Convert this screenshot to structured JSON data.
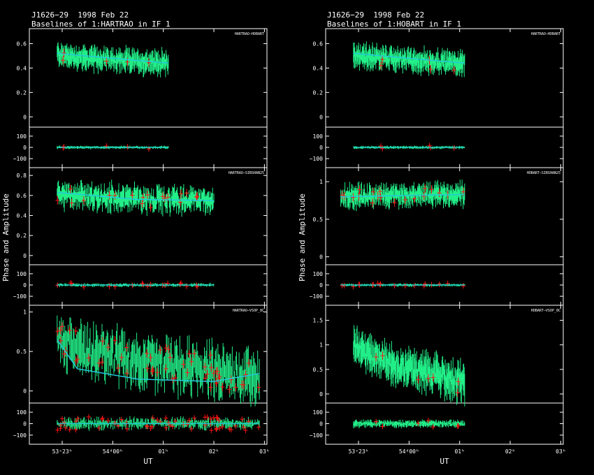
{
  "panels": [
    {
      "title_line1": "J1626−29  1998 Feb 22",
      "title_line2": "Baselines of 1:HARTRAO in IF 1",
      "ylabel": "Phase and Amplitude",
      "xlabel": "UT",
      "x_ticks": [
        {
          "label": "53ˢ23ʰ",
          "value": 0.0
        },
        {
          "label": "54ᵈ00ʰ",
          "value": 1.0
        },
        {
          "label": "01ʰ",
          "value": 2.0
        },
        {
          "label": "02ʰ",
          "value": 3.0
        },
        {
          "label": "03ʰ",
          "value": 4.0
        }
      ],
      "baselines": [
        {
          "name": "HARTRAO−HOBART",
          "amp_ticks": [
            "0.6",
            "0.4",
            "0.2",
            "0"
          ],
          "amp_range": [
            -0.05,
            0.7
          ],
          "phase_ticks": [
            "100",
            "0",
            "−100"
          ],
          "phase_range": [
            -180,
            180
          ],
          "data_x": [
            -0.1,
            2.1
          ],
          "amp_start": 0.52,
          "amp_end": 0.44,
          "amp_spread": 0.09,
          "phase_spread": 10,
          "red_density": 0.02,
          "fit": [
            [
              -0.1,
              0.52
            ],
            [
              2.1,
              0.44
            ]
          ]
        },
        {
          "name": "HARTRAO−SIBSHAN25",
          "amp_ticks": [
            "0.8",
            "0.6",
            "0.4",
            "0.2",
            "0"
          ],
          "amp_range": [
            -0.05,
            0.85
          ],
          "phase_ticks": [
            "100",
            "0",
            "−100"
          ],
          "phase_range": [
            -180,
            180
          ],
          "data_x": [
            -0.1,
            3.0
          ],
          "amp_start": 0.62,
          "amp_end": 0.55,
          "amp_spread": 0.12,
          "phase_spread": 12,
          "red_density": 0.08,
          "fit": [
            [
              -0.1,
              0.63
            ],
            [
              1.5,
              0.56
            ],
            [
              3.0,
              0.55
            ]
          ]
        },
        {
          "name": "HARTRAO−VSOP_8C",
          "amp_ticks": [
            "1",
            "0.5",
            "0"
          ],
          "amp_range": [
            -0.1,
            1.05
          ],
          "phase_ticks": [
            "100",
            "0",
            "−100"
          ],
          "phase_range": [
            -180,
            180
          ],
          "data_x": [
            -0.1,
            3.9
          ],
          "amp_start": 0.7,
          "amp_end": 0.18,
          "amp_spread": 0.3,
          "phase_spread": 40,
          "red_density": 0.25,
          "fit": [
            [
              -0.1,
              0.65
            ],
            [
              0.3,
              0.28
            ],
            [
              1.5,
              0.15
            ],
            [
              3.0,
              0.12
            ],
            [
              3.9,
              0.22
            ]
          ]
        }
      ]
    },
    {
      "title_line1": "J1626−29  1998 Feb 22",
      "title_line2": "Baselines of 1:HOBART in IF 1",
      "ylabel": "Phase and Amplitude",
      "xlabel": "UT",
      "x_ticks": [
        {
          "label": "53ˢ23ʰ",
          "value": 0.0
        },
        {
          "label": "54ᵈ00ʰ",
          "value": 1.0
        },
        {
          "label": "01ʰ",
          "value": 2.0
        },
        {
          "label": "02ʰ",
          "value": 3.0
        },
        {
          "label": "03ʰ",
          "value": 4.0
        }
      ],
      "baselines": [
        {
          "name": "HARTRAO−HOBART",
          "amp_ticks": [
            "0.6",
            "0.4",
            "0.2",
            "0"
          ],
          "amp_range": [
            -0.05,
            0.7
          ],
          "phase_ticks": [
            "100",
            "0",
            "−100"
          ],
          "phase_range": [
            -180,
            180
          ],
          "data_x": [
            -0.1,
            2.1
          ],
          "amp_start": 0.52,
          "amp_end": 0.44,
          "amp_spread": 0.09,
          "phase_spread": 10,
          "red_density": 0.02,
          "fit": [
            [
              -0.1,
              0.52
            ],
            [
              2.1,
              0.44
            ]
          ]
        },
        {
          "name": "HOBART−SIBSHAN25",
          "amp_ticks": [
            "1",
            "0.5",
            "0"
          ],
          "amp_range": [
            -0.05,
            1.15
          ],
          "phase_ticks": [
            "100",
            "0",
            "−100"
          ],
          "phase_range": [
            -180,
            180
          ],
          "data_x": [
            -0.35,
            2.1
          ],
          "amp_start": 0.8,
          "amp_end": 0.83,
          "amp_spread": 0.14,
          "phase_spread": 10,
          "red_density": 0.08,
          "fit": [
            [
              -0.35,
              0.8
            ],
            [
              2.1,
              0.83
            ]
          ]
        },
        {
          "name": "HOBART−VSOP_8C",
          "amp_ticks": [
            "1.5",
            "1",
            "0.5",
            "0"
          ],
          "amp_range": [
            -0.1,
            1.75
          ],
          "phase_ticks": [
            "100",
            "0",
            "−100"
          ],
          "phase_range": [
            -180,
            180
          ],
          "data_x": [
            -0.1,
            2.1
          ],
          "amp_start": 1.1,
          "amp_end": 0.25,
          "amp_spread": 0.35,
          "phase_spread": 25,
          "red_density": 0.03,
          "fit": []
        }
      ]
    }
  ],
  "colors": {
    "data": "#22ee88",
    "flagged": "#ff1010",
    "fit": "#22c8d8",
    "axes": "#ffffff",
    "background": "#000000"
  }
}
